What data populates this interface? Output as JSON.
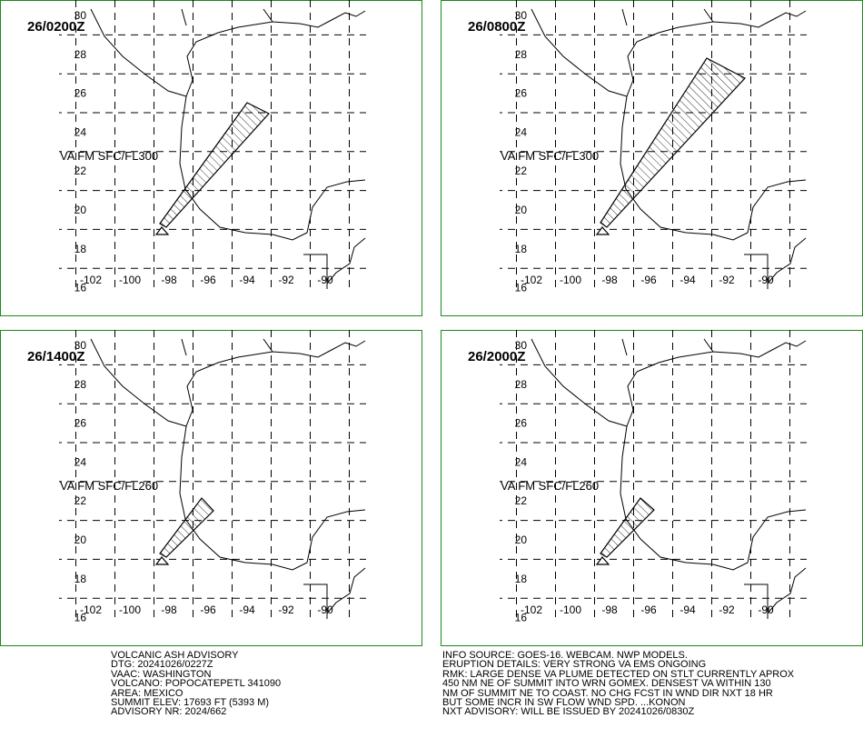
{
  "panels": [
    {
      "time": "26/0200Z",
      "layer": "VA FM SFC/FL300"
    },
    {
      "time": "26/0800Z",
      "layer": "VA FM SFC/FL300"
    },
    {
      "time": "26/1400Z",
      "layer": "VA FM SFC/FL260"
    },
    {
      "time": "26/2000Z",
      "layer": "VA FM SFC/FL260"
    }
  ],
  "lat_labels": [
    30,
    28,
    26,
    24,
    22,
    20,
    18,
    16
  ],
  "lon_labels": [
    -102,
    -100,
    -98,
    -96,
    -94,
    -92,
    -90
  ],
  "advisory_left": [
    "VOLCANIC ASH ADVISORY",
    "DTG: 20241026/0227Z",
    "VAAC: WASHINGTON",
    "VOLCANO: POPOCATEPETL 341090",
    "AREA: MEXICO",
    "SUMMIT ELEV: 17693 FT (5393 M)",
    "ADVISORY NR: 2024/662"
  ],
  "advisory_right": [
    "INFO SOURCE: GOES-16. WEBCAM. NWP MODELS.",
    "ERUPTION DETAILS: VERY STRONG VA EMS ONGOING",
    "RMK: LARGE DENSE VA PLUME DETECTED ON STLT CURRENTLY APROX",
    "450 NM NE OF SUMMIT INTO WRN GOMEX. DENSEST VA WITHIN 130",
    "NM OF SUMMIT NE TO COAST. NO CHG FCST IN WND DIR NXT 18 HR",
    "BUT SOME INCR IN SW FLOW WND SPD. ...KONON",
    "NXT ADVISORY: WILL BE ISSUED BY 20241026/0830Z"
  ]
}
